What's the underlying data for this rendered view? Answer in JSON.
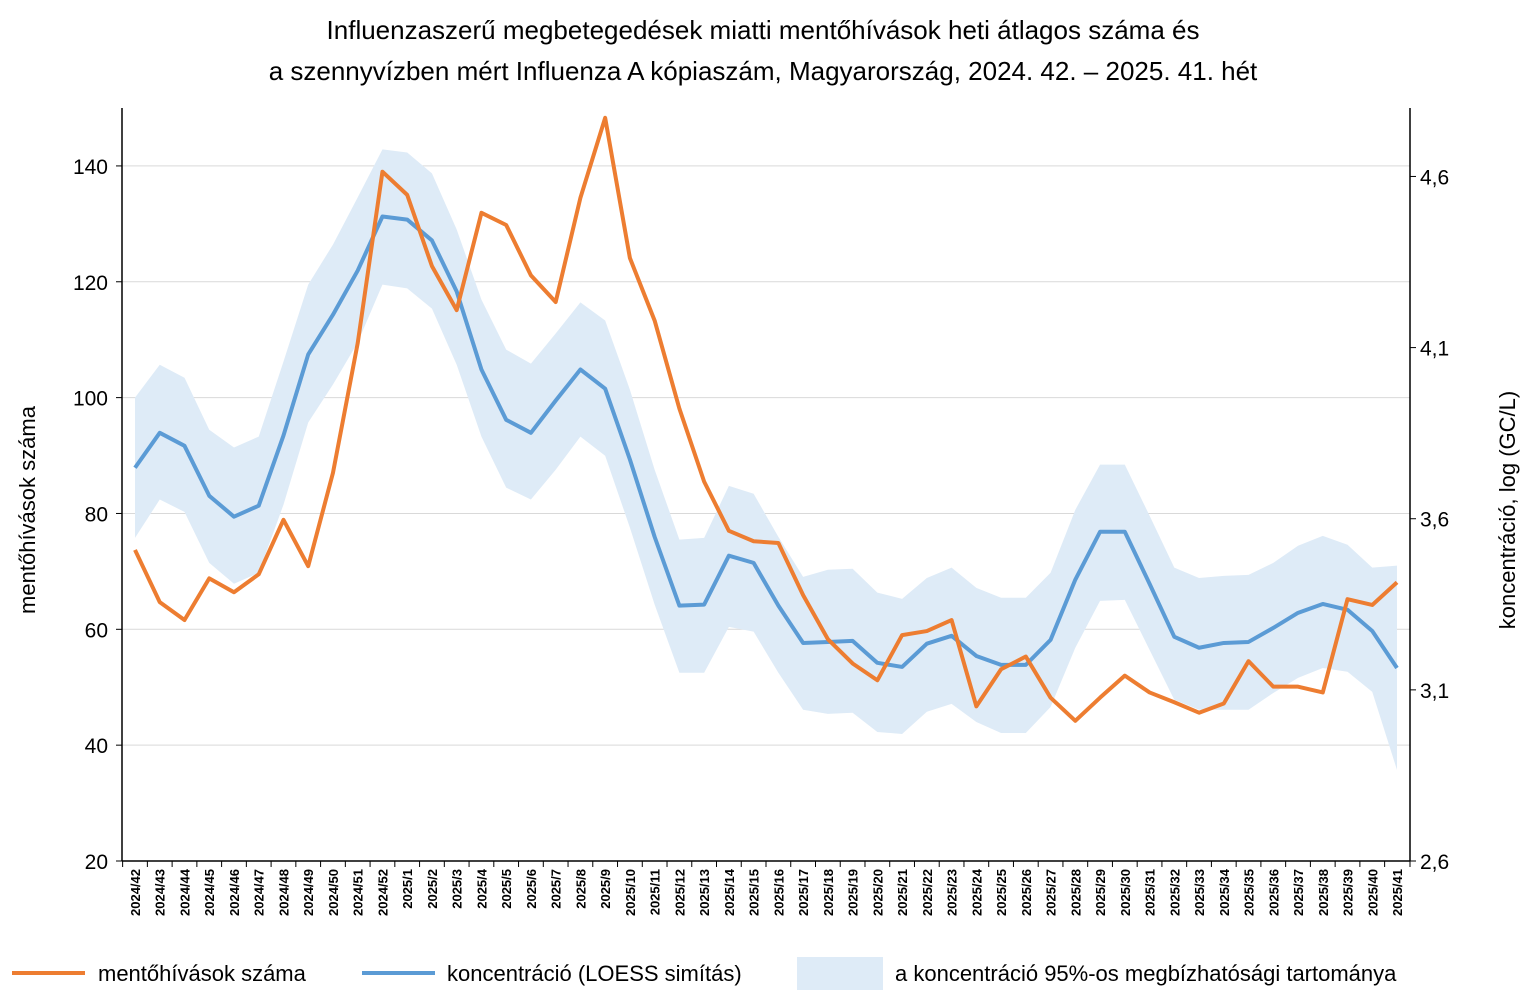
{
  "chart_data": {
    "type": "line",
    "title": [
      "Influenzaszerű megbetegedések miatti mentőhívások heti átlagos száma és",
      "a szennyvízben mért Influenza A kópiaszám, Magyarország, 2024. 42. – 2025. 41. hét"
    ],
    "xlabel": "",
    "ylabel": "mentőhívások száma",
    "y2label": "koncentráció, log (GC/L)",
    "ylim": [
      20,
      150
    ],
    "y2lim": [
      2.6,
      4.8
    ],
    "yticks": [
      20,
      40,
      60,
      80,
      100,
      120,
      140
    ],
    "y2ticks": [
      "2,6",
      "3,1",
      "3,6",
      "4,1",
      "4,6"
    ],
    "y2tick_values": [
      2.6,
      3.1,
      3.6,
      4.1,
      4.6
    ],
    "grid": true,
    "legend_position": "bottom",
    "categories": [
      "2024/42",
      "2024/43",
      "2024/44",
      "2024/45",
      "2024/46",
      "2024/47",
      "2024/48",
      "2024/49",
      "2024/50",
      "2024/51",
      "2024/52",
      "2025/1",
      "2025/2",
      "2025/3",
      "2025/4",
      "2025/5",
      "2025/6",
      "2025/7",
      "2025/8",
      "2025/9",
      "2025/10",
      "2025/11",
      "2025/12",
      "2025/13",
      "2025/14",
      "2025/15",
      "2025/16",
      "2025/17",
      "2025/18",
      "2025/19",
      "2025/20",
      "2025/21",
      "2025/22",
      "2025/23",
      "2025/24",
      "2025/25",
      "2025/26",
      "2025/27",
      "2025/28",
      "2025/29",
      "2025/30",
      "2025/31",
      "2025/32",
      "2025/33",
      "2025/34",
      "2025/35",
      "2025/36",
      "2025/37",
      "2025/38",
      "2025/39",
      "2025/40",
      "2025/41"
    ],
    "series": [
      {
        "name": "mentőhívások száma",
        "axis": "left",
        "color": "#ED7D31",
        "values": [
          73.7,
          64.7,
          61.6,
          68.8,
          66.4,
          69.5,
          78.9,
          70.9,
          87.0,
          109.4,
          139.0,
          135.0,
          122.7,
          115.1,
          131.9,
          129.8,
          121.1,
          116.5,
          134.5,
          148.3,
          124.1,
          113.3,
          98.1,
          85.5,
          77.0,
          75.2,
          74.9,
          65.9,
          58.3,
          54.1,
          51.2,
          59.0,
          59.7,
          61.6,
          46.7,
          53.1,
          55.3,
          48.2,
          44.2,
          48.2,
          52.0,
          49.1,
          47.4,
          45.6,
          47.2,
          54.5,
          50.1,
          50.1,
          49.1,
          65.2,
          64.2,
          68.1
        ]
      },
      {
        "name": "koncentráció (LOESS simítás)",
        "axis": "right",
        "color": "#5B9BD5",
        "values": [
          3.749,
          3.851,
          3.813,
          3.667,
          3.606,
          3.638,
          3.843,
          4.08,
          4.196,
          4.325,
          4.483,
          4.474,
          4.413,
          4.264,
          4.036,
          3.889,
          3.851,
          3.945,
          4.036,
          3.98,
          3.773,
          3.547,
          3.346,
          3.349,
          3.492,
          3.471,
          3.346,
          3.237,
          3.24,
          3.243,
          3.179,
          3.167,
          3.235,
          3.258,
          3.199,
          3.173,
          3.173,
          3.246,
          3.422,
          3.562,
          3.562,
          3.41,
          3.255,
          3.223,
          3.237,
          3.24,
          3.281,
          3.325,
          3.351,
          3.334,
          3.272,
          3.164
        ]
      },
      {
        "name": "a koncentráció 95%-os megbízhatósági tartománya",
        "axis": "right",
        "type": "band",
        "color": "#DEEBF7",
        "upper": [
          3.954,
          4.05,
          4.012,
          3.86,
          3.808,
          3.84,
          4.059,
          4.284,
          4.401,
          4.539,
          4.679,
          4.67,
          4.609,
          4.445,
          4.24,
          4.094,
          4.053,
          4.141,
          4.232,
          4.179,
          3.977,
          3.743,
          3.539,
          3.544,
          3.696,
          3.673,
          3.547,
          3.43,
          3.451,
          3.454,
          3.384,
          3.366,
          3.427,
          3.457,
          3.398,
          3.369,
          3.369,
          3.442,
          3.626,
          3.758,
          3.758,
          3.609,
          3.457,
          3.427,
          3.433,
          3.436,
          3.471,
          3.521,
          3.55,
          3.524,
          3.457,
          3.463
        ],
        "lower": [
          3.544,
          3.656,
          3.62,
          3.471,
          3.41,
          3.442,
          3.641,
          3.881,
          3.992,
          4.115,
          4.284,
          4.273,
          4.214,
          4.05,
          3.84,
          3.691,
          3.656,
          3.743,
          3.84,
          3.784,
          3.574,
          3.349,
          3.15,
          3.15,
          3.284,
          3.27,
          3.15,
          3.042,
          3.03,
          3.033,
          2.977,
          2.971,
          3.036,
          3.059,
          3.006,
          2.974,
          2.974,
          3.05,
          3.223,
          3.36,
          3.363,
          3.217,
          3.071,
          3.042,
          3.042,
          3.042,
          3.091,
          3.135,
          3.164,
          3.153,
          3.094,
          2.866
        ]
      }
    ]
  }
}
